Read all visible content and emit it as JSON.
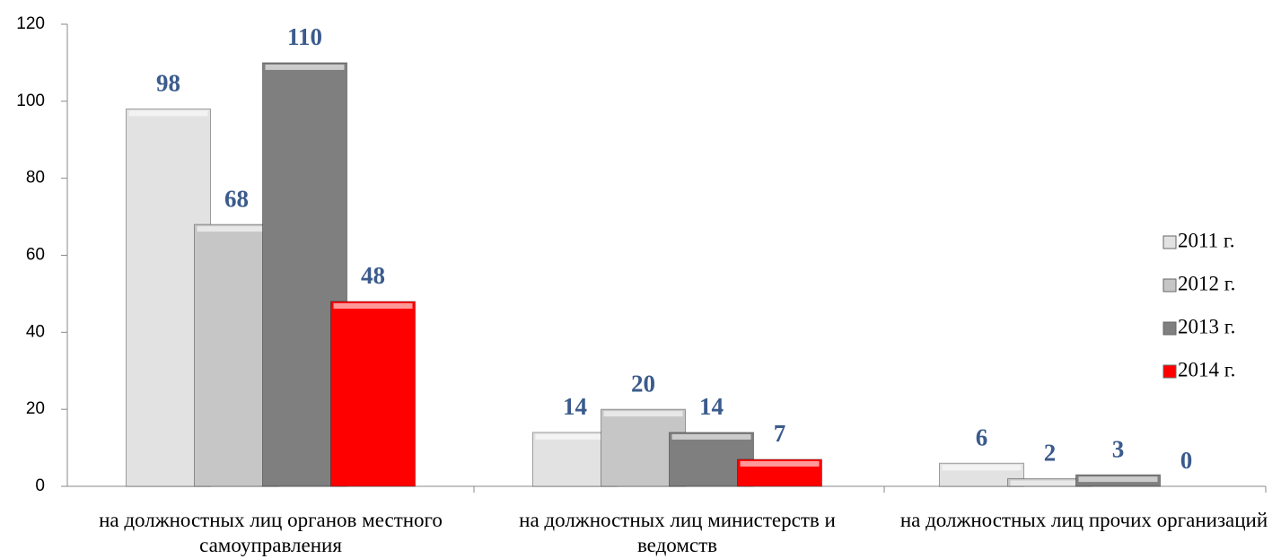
{
  "chart_data": {
    "type": "bar",
    "categories": [
      "на должностных лиц органов местного самоуправления",
      "на должностных лиц министерств и ведомств",
      "на должностных лиц прочих организаций"
    ],
    "series": [
      {
        "name": "2011 г.",
        "color": "#e2e2e2",
        "values": [
          98,
          14,
          6
        ]
      },
      {
        "name": "2012 г.",
        "color": "#c6c6c6",
        "values": [
          68,
          20,
          2
        ]
      },
      {
        "name": "2013 г.",
        "color": "#7f7f7f",
        "values": [
          110,
          14,
          3
        ]
      },
      {
        "name": "2014 г.",
        "color": "#ff0000",
        "values": [
          48,
          7,
          0
        ]
      }
    ],
    "ylim": [
      0,
      120
    ],
    "yticks": [
      0,
      20,
      40,
      60,
      80,
      100,
      120
    ],
    "grid": false,
    "legend": "right"
  }
}
